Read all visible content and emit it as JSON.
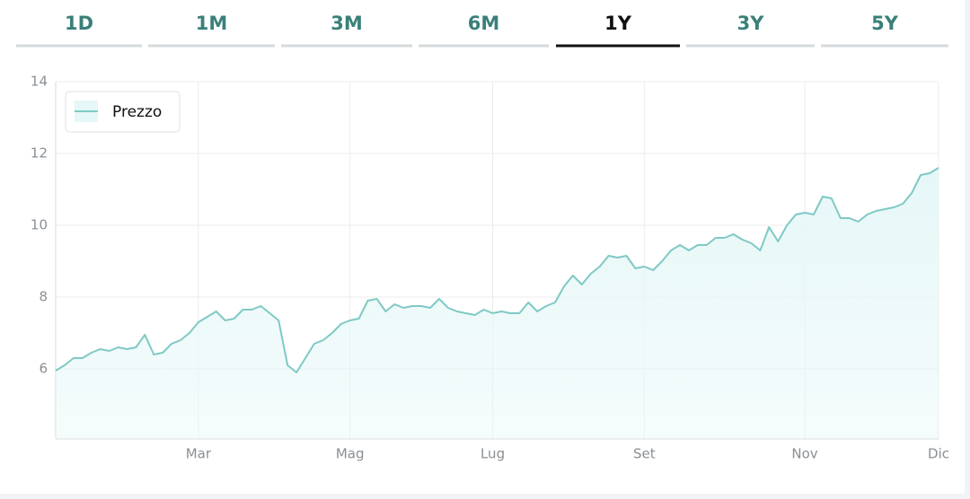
{
  "tabs": [
    {
      "label": "1D"
    },
    {
      "label": "1M"
    },
    {
      "label": "3M"
    },
    {
      "label": "6M"
    },
    {
      "label": "1Y"
    },
    {
      "label": "3Y"
    },
    {
      "label": "5Y"
    }
  ],
  "active_tab": 4,
  "chart_data": {
    "type": "area",
    "x": [
      0,
      1,
      2,
      3,
      4,
      5,
      6,
      7,
      8,
      9,
      10,
      11,
      12,
      13,
      14,
      15,
      16,
      17,
      18,
      19,
      20,
      21,
      22,
      23,
      24,
      25,
      26,
      27,
      28,
      29,
      30,
      31,
      32,
      33,
      34,
      35,
      36,
      37,
      38,
      39,
      40,
      41,
      42,
      43,
      44,
      45,
      46,
      47,
      48,
      49,
      50,
      51,
      52,
      53,
      54,
      55,
      56,
      57,
      58,
      59,
      60,
      61,
      62,
      63,
      64,
      65,
      66,
      67,
      68,
      69,
      70,
      71,
      72,
      73,
      74,
      75,
      76,
      77,
      78,
      79,
      80,
      81,
      82,
      83,
      84,
      85,
      86,
      87,
      88,
      89,
      90,
      91,
      92,
      93,
      94,
      95,
      96,
      97,
      98,
      99
    ],
    "series": [
      {
        "name": "Prezzo",
        "color": "#7fc9c5",
        "fill": "#e6f7f7",
        "values": [
          5.95,
          6.1,
          6.3,
          6.3,
          6.45,
          6.55,
          6.5,
          6.6,
          6.55,
          6.6,
          6.95,
          6.4,
          6.45,
          6.7,
          6.8,
          7.0,
          7.3,
          7.45,
          7.6,
          7.35,
          7.4,
          7.65,
          7.65,
          7.75,
          7.55,
          7.35,
          6.1,
          5.9,
          6.3,
          6.7,
          6.8,
          7.0,
          7.25,
          7.35,
          7.4,
          7.9,
          7.95,
          7.6,
          7.8,
          7.7,
          7.75,
          7.75,
          7.7,
          7.95,
          7.7,
          7.6,
          7.55,
          7.5,
          7.65,
          7.55,
          7.6,
          7.55,
          7.55,
          7.85,
          7.6,
          7.75,
          7.85,
          8.3,
          8.6,
          8.35,
          8.65,
          8.85,
          9.15,
          9.1,
          9.15,
          8.8,
          8.85,
          8.75,
          9.0,
          9.3,
          9.45,
          9.3,
          9.45,
          9.45,
          9.65,
          9.65,
          9.75,
          9.6,
          9.5,
          9.3,
          9.95,
          9.55,
          10.0,
          10.3,
          10.35,
          10.3,
          10.8,
          10.75,
          10.2,
          10.2,
          10.1,
          10.3,
          10.4,
          10.45,
          10.5,
          10.6,
          10.9,
          11.4,
          11.45,
          11.6
        ]
      }
    ],
    "xlim": [
      0,
      99
    ],
    "xticks": [
      {
        "value": 16,
        "label": "Mar"
      },
      {
        "value": 33,
        "label": "Mag"
      },
      {
        "value": 49,
        "label": "Lug"
      },
      {
        "value": 66,
        "label": "Set"
      },
      {
        "value": 84,
        "label": "Nov"
      },
      {
        "value": 99,
        "label": "Dic"
      }
    ],
    "ylim": [
      4,
      14
    ],
    "yticks": [
      6,
      8,
      10,
      12,
      14
    ],
    "grid": true,
    "legend": "top-left"
  }
}
